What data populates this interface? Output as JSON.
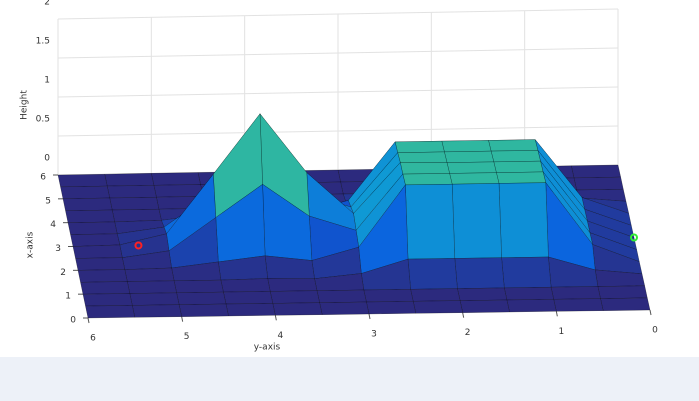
{
  "chart_data": {
    "type": "surface",
    "zlabel": "Height",
    "xlabel": "x-axis",
    "ylabel": "y-axis",
    "x": [
      0,
      0.5,
      1,
      1.5,
      2,
      2.5,
      3,
      3.5,
      4,
      4.5,
      5,
      5.5,
      6
    ],
    "y": [
      0,
      0.5,
      1,
      1.5,
      2,
      2.5,
      3,
      3.5,
      4,
      4.5,
      5,
      5.5,
      6
    ],
    "z": [
      [
        0,
        0,
        0,
        0,
        0,
        0,
        0,
        0,
        0,
        0,
        0,
        0,
        0
      ],
      [
        0,
        0,
        0,
        0,
        0,
        0,
        0,
        0,
        0,
        0,
        0,
        0,
        0
      ],
      [
        0,
        0,
        0,
        0,
        0,
        0,
        0,
        0,
        0,
        0,
        0,
        0,
        0
      ],
      [
        0,
        0.05,
        0.2,
        0.2,
        0.2,
        0.2,
        0.05,
        0,
        0.01,
        0,
        0,
        0,
        0
      ],
      [
        0,
        0.2,
        0.9,
        0.9,
        0.9,
        0.9,
        0.21,
        0.07,
        0.13,
        0.07,
        0.01,
        0,
        0
      ],
      [
        0,
        0.2,
        0.9,
        0.9,
        0.9,
        0.9,
        0.27,
        0.44,
        0.81,
        0.44,
        0.07,
        0,
        0
      ],
      [
        0,
        0.2,
        0.9,
        0.9,
        0.9,
        0.91,
        0.33,
        0.81,
        1.5,
        0.81,
        0.13,
        0.01,
        0
      ],
      [
        0,
        0.2,
        0.9,
        0.9,
        0.9,
        0.9,
        0.27,
        0.44,
        0.81,
        0.44,
        0.07,
        0,
        0
      ],
      [
        0,
        0.2,
        0.9,
        0.9,
        0.9,
        0.9,
        0.21,
        0.07,
        0.13,
        0.07,
        0.01,
        0,
        0
      ],
      [
        0,
        0.05,
        0.2,
        0.2,
        0.2,
        0.2,
        0.05,
        0,
        0.01,
        0,
        0,
        0,
        0
      ],
      [
        0,
        0,
        0,
        0,
        0,
        0,
        0,
        0,
        0,
        0,
        0,
        0,
        0
      ],
      [
        0,
        0,
        0,
        0,
        0,
        0,
        0,
        0,
        0,
        0,
        0,
        0,
        0
      ],
      [
        0,
        0,
        0,
        0,
        0,
        0,
        0,
        0,
        0,
        0,
        0,
        0,
        0
      ]
    ],
    "xlim": [
      0,
      6
    ],
    "ylim": [
      0,
      6
    ],
    "zlim": [
      0,
      2
    ],
    "xticks": [
      0,
      1,
      2,
      3,
      4,
      5,
      6
    ],
    "yticks": [
      0,
      1,
      2,
      3,
      4,
      5,
      6
    ],
    "zticks": [
      0,
      0.5,
      1,
      1.5,
      2
    ],
    "colormap": [
      "#2c2a7e",
      "#0a5ddf",
      "#0f99d4",
      "#2fb7a0",
      "#a8bd4e",
      "#f9fb0e"
    ],
    "grid": true,
    "markers": [
      {
        "x": 3,
        "y": 5.3,
        "z": 0,
        "color": "#ff2020"
      },
      {
        "x": 3,
        "y": 0,
        "z": 0,
        "color": "#33ee33"
      }
    ]
  }
}
